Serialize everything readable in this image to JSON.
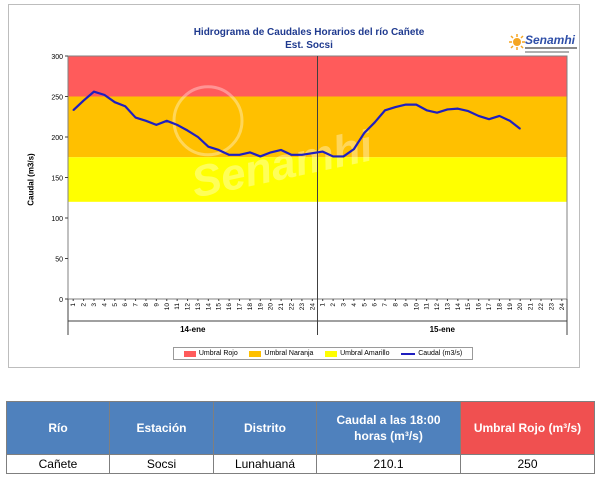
{
  "chart": {
    "title_line1": "Hidrograma de Caudales Horarios del río Cañete",
    "title_line2": "Est. Socsi",
    "logo_text": "Senamhi",
    "watermark": "Senamhi",
    "colors": {
      "rojo": "#ff5b5b",
      "naranja": "#ffc000",
      "amarillo": "#ffff00",
      "caudal": "#1f1fbf"
    }
  },
  "legend": {
    "rojo": "Umbral Rojo",
    "naranja": "Umbral Naranja",
    "amarillo": "Umbral Amarillo",
    "caudal": "Caudal (m3/s)"
  },
  "chart_data": {
    "type": "line",
    "ylabel": "Caudal  (m3/s)",
    "ylim": [
      0,
      300
    ],
    "yticks": [
      "0",
      "50",
      "100",
      "150",
      "200",
      "250",
      "300"
    ],
    "x_tick_labels": [
      "1",
      "2",
      "3",
      "4",
      "5",
      "6",
      "7",
      "8",
      "9",
      "10",
      "11",
      "12",
      "13",
      "14",
      "15",
      "16",
      "17",
      "18",
      "19",
      "20",
      "21",
      "22",
      "23",
      "24",
      "1",
      "2",
      "3",
      "4",
      "5",
      "6",
      "7",
      "8",
      "9",
      "10",
      "11",
      "12",
      "13",
      "14",
      "15",
      "16",
      "17",
      "18",
      "19",
      "20",
      "21",
      "22",
      "23",
      "24"
    ],
    "day_labels": [
      "14-ene",
      "15-ene"
    ],
    "thresholds": {
      "amarillo": [
        120,
        175
      ],
      "naranja": [
        175,
        250
      ],
      "rojo": [
        250,
        300
      ]
    },
    "series": [
      {
        "name": "Caudal (m3/s)",
        "values": [
          233,
          245,
          256,
          252,
          243,
          238,
          224,
          220,
          215,
          220,
          215,
          208,
          200,
          188,
          184,
          178,
          178,
          181,
          176,
          181,
          184,
          178,
          178,
          180,
          182,
          176,
          176,
          185,
          205,
          218,
          233,
          237,
          240,
          240,
          233,
          230,
          234,
          235,
          232,
          226,
          222,
          226,
          220,
          210.1
        ]
      }
    ]
  },
  "table": {
    "headers": [
      "Río",
      "Estación",
      "Distrito",
      "Caudal a las 18:00 horas (m³/s)",
      "Umbral Rojo (m³/s)"
    ],
    "row": [
      "Cañete",
      "Socsi",
      "Lunahuaná",
      "210.1",
      "250"
    ]
  }
}
